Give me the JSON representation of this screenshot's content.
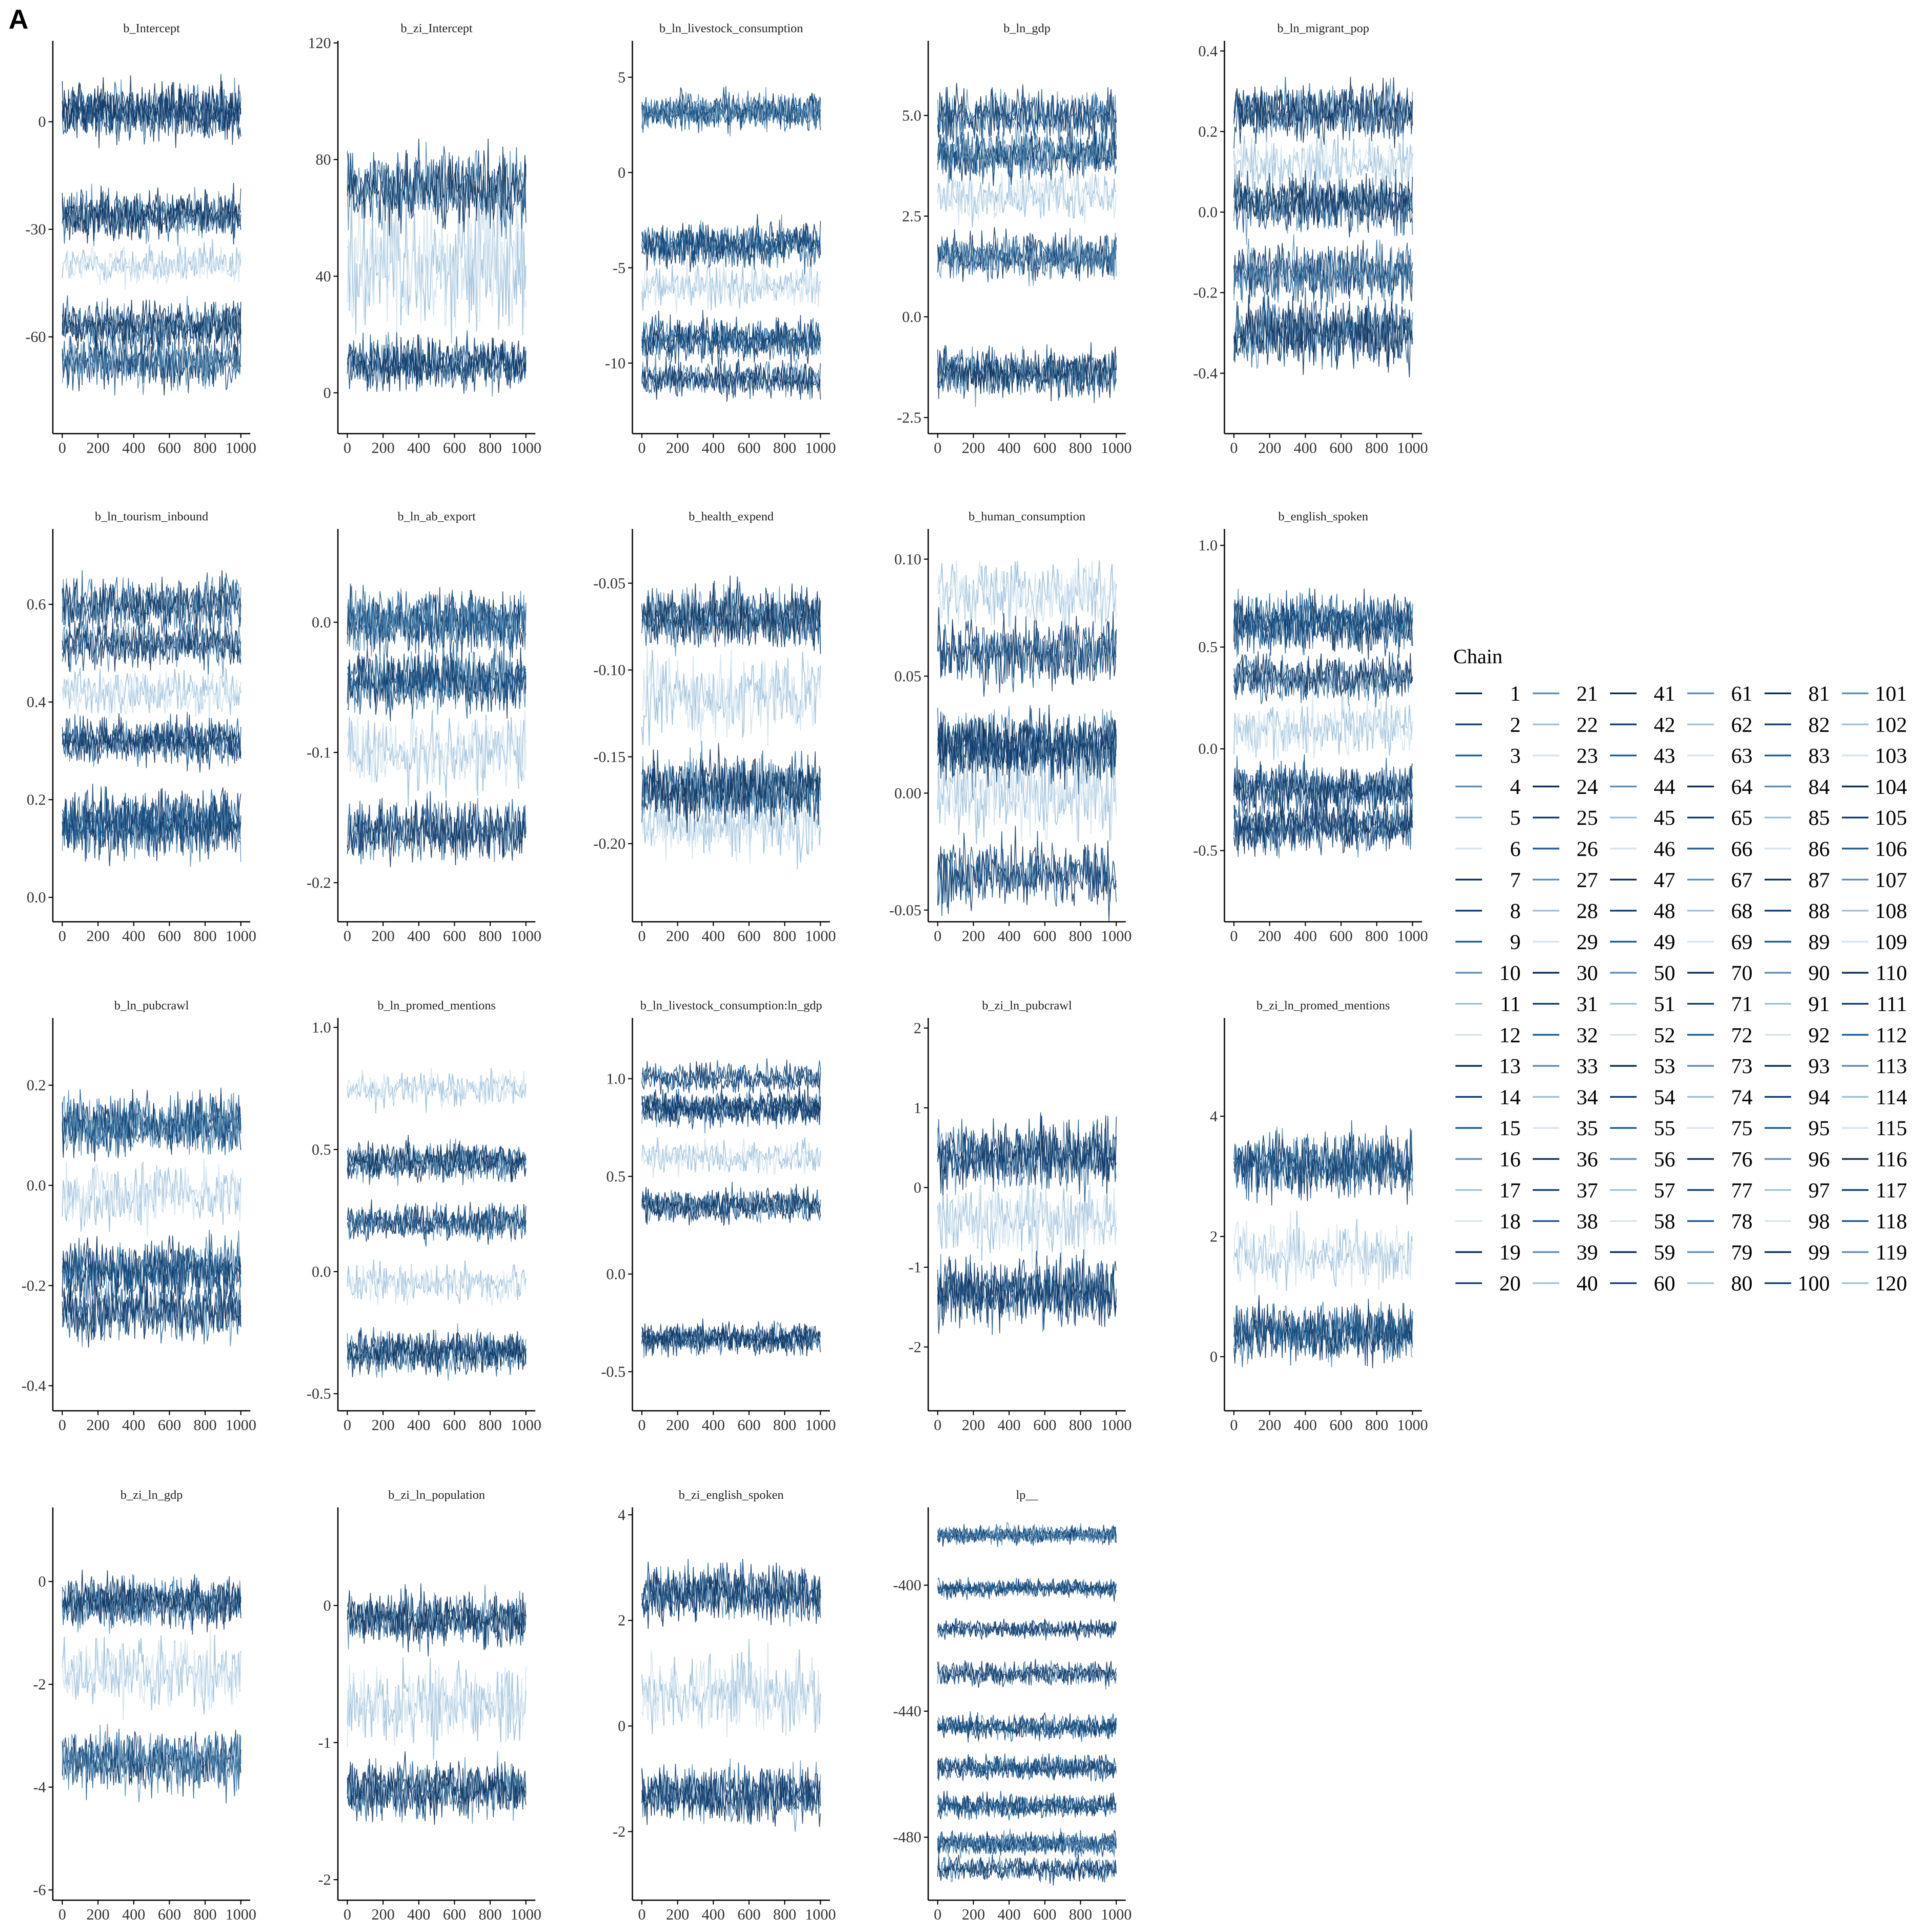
{
  "panel_label": "A",
  "chart_data": {
    "type": "line",
    "description": "MCMC trace plots faceted by parameter; 120 chains, 1000 iterations each",
    "x": {
      "range": [
        0,
        1000
      ],
      "ticks": [
        0,
        200,
        400,
        600,
        800,
        1000
      ]
    },
    "legend": {
      "title": "Chain",
      "placement": "right",
      "chains": [
        1,
        2,
        3,
        4,
        5,
        6,
        7,
        8,
        9,
        10,
        11,
        12,
        13,
        14,
        15,
        16,
        17,
        18,
        19,
        20,
        21,
        22,
        23,
        24,
        25,
        26,
        27,
        28,
        29,
        30,
        31,
        32,
        33,
        34,
        35,
        36,
        37,
        38,
        39,
        40,
        41,
        42,
        43,
        44,
        45,
        46,
        47,
        48,
        49,
        50,
        51,
        52,
        53,
        54,
        55,
        56,
        57,
        58,
        59,
        60,
        61,
        62,
        63,
        64,
        65,
        66,
        67,
        68,
        69,
        70,
        71,
        72,
        73,
        74,
        75,
        76,
        77,
        78,
        79,
        80,
        81,
        82,
        83,
        84,
        85,
        86,
        87,
        88,
        89,
        90,
        91,
        92,
        93,
        94,
        95,
        96,
        97,
        98,
        99,
        100,
        101,
        102,
        103,
        104,
        105,
        106,
        107,
        108,
        109,
        110,
        111,
        112,
        113,
        114,
        115,
        116,
        117,
        118,
        119,
        120
      ],
      "palette": [
        "#0b2c55",
        "#0d3b70",
        "#1a5a8f",
        "#5b8db3",
        "#9fc0da",
        "#d5e4f0"
      ]
    },
    "facets": [
      {
        "title": "b_Intercept",
        "ylim": [
          -87,
          22
        ],
        "yticks": [
          0,
          -30,
          -60
        ],
        "ytick_labels": [
          "0",
          "-30",
          "-60"
        ],
        "bands": [
          {
            "center": 3,
            "spread": 8,
            "weight": 1
          },
          {
            "center": -26,
            "spread": 7,
            "weight": 0.8
          },
          {
            "center": -40,
            "spread": 6,
            "weight": 0.2
          },
          {
            "center": -57,
            "spread": 7,
            "weight": 0.9
          },
          {
            "center": -67,
            "spread": 8,
            "weight": 0.7
          }
        ]
      },
      {
        "title": "b_zi_Intercept",
        "ylim": [
          -14,
          120
        ],
        "yticks": [
          0,
          40,
          80,
          120
        ],
        "ytick_labels": [
          "0",
          "40",
          "80",
          "120"
        ],
        "bands": [
          {
            "center": 10,
            "spread": 9,
            "weight": 0.9
          },
          {
            "center": 45,
            "spread": 28,
            "weight": 0.4
          },
          {
            "center": 70,
            "spread": 14,
            "weight": 0.6
          }
        ]
      },
      {
        "title": "b_ln_livestock_consumption",
        "ylim": [
          -13.7,
          6.8
        ],
        "yticks": [
          5,
          0,
          -5,
          -10
        ],
        "ytick_labels": [
          "5",
          "0",
          "-5",
          "-10"
        ],
        "bands": [
          {
            "center": 3.2,
            "spread": 1,
            "weight": 1
          },
          {
            "center": -3.8,
            "spread": 1.2,
            "weight": 0.9
          },
          {
            "center": -6,
            "spread": 1.2,
            "weight": 0.3
          },
          {
            "center": -8.8,
            "spread": 1.2,
            "weight": 0.9
          },
          {
            "center": -10.8,
            "spread": 1,
            "weight": 0.6
          }
        ]
      },
      {
        "title": "b_ln_gdp",
        "ylim": [
          -2.9,
          6.8
        ],
        "yticks": [
          5.0,
          2.5,
          0.0,
          -2.5
        ],
        "ytick_labels": [
          "5.0",
          "2.5",
          "0.0",
          "-2.5"
        ],
        "bands": [
          {
            "center": 5.0,
            "spread": 0.7,
            "weight": 0.7
          },
          {
            "center": 4.0,
            "spread": 0.6,
            "weight": 0.9
          },
          {
            "center": 3.0,
            "spread": 0.6,
            "weight": 0.3
          },
          {
            "center": 1.5,
            "spread": 0.6,
            "weight": 0.9
          },
          {
            "center": -1.4,
            "spread": 0.6,
            "weight": 1
          }
        ]
      },
      {
        "title": "b_ln_migrant_pop",
        "ylim": [
          -0.55,
          0.42
        ],
        "yticks": [
          0.4,
          0.2,
          0.0,
          -0.2,
          -0.4
        ],
        "ytick_labels": [
          "0.4",
          "0.2",
          "0.0",
          "-0.2",
          "-0.4"
        ],
        "bands": [
          {
            "center": 0.25,
            "spread": 0.07,
            "weight": 0.8
          },
          {
            "center": 0.12,
            "spread": 0.07,
            "weight": 0.3
          },
          {
            "center": 0.02,
            "spread": 0.07,
            "weight": 0.8
          },
          {
            "center": -0.15,
            "spread": 0.08,
            "weight": 0.7
          },
          {
            "center": -0.3,
            "spread": 0.09,
            "weight": 0.8
          }
        ]
      },
      {
        "title": "b_ln_tourism_inbound",
        "ylim": [
          -0.05,
          0.75
        ],
        "yticks": [
          0.6,
          0.4,
          0.2,
          0.0
        ],
        "ytick_labels": [
          "0.6",
          "0.4",
          "0.2",
          "0.0"
        ],
        "bands": [
          {
            "center": 0.6,
            "spread": 0.06,
            "weight": 0.7
          },
          {
            "center": 0.52,
            "spread": 0.05,
            "weight": 0.7
          },
          {
            "center": 0.42,
            "spread": 0.05,
            "weight": 0.3
          },
          {
            "center": 0.32,
            "spread": 0.05,
            "weight": 0.8
          },
          {
            "center": 0.15,
            "spread": 0.07,
            "weight": 1
          }
        ]
      },
      {
        "title": "b_ln_ab_export",
        "ylim": [
          -0.23,
          0.07
        ],
        "yticks": [
          0.0,
          -0.1,
          -0.2
        ],
        "ytick_labels": [
          "0.0",
          "-0.1",
          "-0.2"
        ],
        "bands": [
          {
            "center": 0.0,
            "spread": 0.025,
            "weight": 1
          },
          {
            "center": -0.045,
            "spread": 0.025,
            "weight": 0.8
          },
          {
            "center": -0.1,
            "spread": 0.03,
            "weight": 0.3
          },
          {
            "center": -0.16,
            "spread": 0.025,
            "weight": 0.7
          }
        ]
      },
      {
        "title": "b_health_expend",
        "ylim": [
          -0.245,
          -0.02
        ],
        "yticks": [
          -0.05,
          -0.1,
          -0.15,
          -0.2
        ],
        "ytick_labels": [
          "-0.05",
          "-0.10",
          "-0.15",
          "-0.20"
        ],
        "bands": [
          {
            "center": -0.07,
            "spread": 0.018,
            "weight": 1
          },
          {
            "center": -0.115,
            "spread": 0.025,
            "weight": 0.3
          },
          {
            "center": -0.168,
            "spread": 0.02,
            "weight": 1
          },
          {
            "center": -0.19,
            "spread": 0.02,
            "weight": 0.4
          }
        ]
      },
      {
        "title": "b_human_consumption",
        "ylim": [
          -0.055,
          0.112
        ],
        "yticks": [
          0.1,
          0.05,
          0.0,
          -0.05
        ],
        "ytick_labels": [
          "0.10",
          "0.05",
          "0.00",
          "-0.05"
        ],
        "bands": [
          {
            "center": 0.085,
            "spread": 0.015,
            "weight": 0.3
          },
          {
            "center": 0.06,
            "spread": 0.015,
            "weight": 0.5
          },
          {
            "center": 0.02,
            "spread": 0.015,
            "weight": 1
          },
          {
            "center": 0.0,
            "spread": 0.02,
            "weight": 0.4
          },
          {
            "center": -0.035,
            "spread": 0.015,
            "weight": 0.5
          }
        ]
      },
      {
        "title": "b_english_spoken",
        "ylim": [
          -0.85,
          1.07
        ],
        "yticks": [
          1.0,
          0.5,
          0.0,
          -0.5
        ],
        "ytick_labels": [
          "1.0",
          "0.5",
          "0.0",
          "-0.5"
        ],
        "bands": [
          {
            "center": 0.62,
            "spread": 0.14,
            "weight": 1
          },
          {
            "center": 0.35,
            "spread": 0.12,
            "weight": 0.7
          },
          {
            "center": 0.1,
            "spread": 0.15,
            "weight": 0.3
          },
          {
            "center": -0.2,
            "spread": 0.13,
            "weight": 0.9
          },
          {
            "center": -0.38,
            "spread": 0.13,
            "weight": 0.8
          }
        ]
      },
      {
        "title": "b_ln_pubcrawl",
        "ylim": [
          -0.45,
          0.33
        ],
        "yticks": [
          0.2,
          0.0,
          -0.2,
          -0.4
        ],
        "ytick_labels": [
          "0.2",
          "0.0",
          "-0.2",
          "-0.4"
        ],
        "bands": [
          {
            "center": 0.12,
            "spread": 0.06,
            "weight": 1
          },
          {
            "center": -0.02,
            "spread": 0.07,
            "weight": 0.3
          },
          {
            "center": -0.17,
            "spread": 0.06,
            "weight": 0.9
          },
          {
            "center": -0.25,
            "spread": 0.06,
            "weight": 0.7
          }
        ]
      },
      {
        "title": "b_ln_promed_mentions",
        "ylim": [
          -0.57,
          1.03
        ],
        "yticks": [
          1.0,
          0.5,
          0.0,
          -0.5
        ],
        "ytick_labels": [
          "1.0",
          "0.5",
          "0.0",
          "-0.5"
        ],
        "bands": [
          {
            "center": 0.75,
            "spread": 0.08,
            "weight": 0.3
          },
          {
            "center": 0.45,
            "spread": 0.08,
            "weight": 1
          },
          {
            "center": 0.2,
            "spread": 0.08,
            "weight": 0.6
          },
          {
            "center": -0.05,
            "spread": 0.08,
            "weight": 0.3
          },
          {
            "center": -0.33,
            "spread": 0.09,
            "weight": 1
          }
        ]
      },
      {
        "title": "b_ln_livestock_consumption:ln_gdp",
        "ylim": [
          -0.7,
          1.3
        ],
        "yticks": [
          1.0,
          0.5,
          0.0,
          -0.5
        ],
        "ytick_labels": [
          "1.0",
          "0.5",
          "0.0",
          "-0.5"
        ],
        "bands": [
          {
            "center": 1.0,
            "spread": 0.08,
            "weight": 0.5
          },
          {
            "center": 0.85,
            "spread": 0.09,
            "weight": 1
          },
          {
            "center": 0.6,
            "spread": 0.09,
            "weight": 0.3
          },
          {
            "center": 0.35,
            "spread": 0.09,
            "weight": 0.9
          },
          {
            "center": -0.33,
            "spread": 0.08,
            "weight": 1
          }
        ]
      },
      {
        "title": "b_zi_ln_pubcrawl",
        "ylim": [
          -2.8,
          2.1
        ],
        "yticks": [
          2,
          1,
          0,
          -1,
          -2
        ],
        "ytick_labels": [
          "2",
          "1",
          "0",
          "-1",
          "-2"
        ],
        "bands": [
          {
            "center": 0.4,
            "spread": 0.45,
            "weight": 0.8
          },
          {
            "center": -0.4,
            "spread": 0.5,
            "weight": 0.4
          },
          {
            "center": -1.3,
            "spread": 0.45,
            "weight": 0.9
          }
        ]
      },
      {
        "title": "b_zi_ln_promed_mentions",
        "ylim": [
          -0.9,
          5.6
        ],
        "yticks": [
          4,
          2,
          0
        ],
        "ytick_labels": [
          "4",
          "2",
          "0"
        ],
        "bands": [
          {
            "center": 3.2,
            "spread": 0.55,
            "weight": 0.8
          },
          {
            "center": 1.7,
            "spread": 0.6,
            "weight": 0.4
          },
          {
            "center": 0.4,
            "spread": 0.5,
            "weight": 0.9
          }
        ]
      },
      {
        "title": "b_zi_ln_gdp",
        "ylim": [
          -6.2,
          1.4
        ],
        "yticks": [
          0,
          -2,
          -4,
          -6
        ],
        "ytick_labels": [
          "0",
          "-2",
          "-4",
          "-6"
        ],
        "bands": [
          {
            "center": -0.4,
            "spread": 0.5,
            "weight": 1
          },
          {
            "center": -1.8,
            "spread": 0.7,
            "weight": 0.4
          },
          {
            "center": -3.5,
            "spread": 0.6,
            "weight": 0.9
          }
        ]
      },
      {
        "title": "b_zi_ln_population",
        "ylim": [
          -2.15,
          0.7
        ],
        "yticks": [
          0,
          -1,
          -2
        ],
        "ytick_labels": [
          "0",
          "-1",
          "-2"
        ],
        "bands": [
          {
            "center": -0.1,
            "spread": 0.2,
            "weight": 0.9
          },
          {
            "center": -0.7,
            "spread": 0.3,
            "weight": 0.4
          },
          {
            "center": -1.35,
            "spread": 0.22,
            "weight": 0.9
          }
        ]
      },
      {
        "title": "b_zi_english_spoken",
        "ylim": [
          -3.3,
          4.1
        ],
        "yticks": [
          4,
          2,
          0,
          -2
        ],
        "ytick_labels": [
          "4",
          "2",
          "0",
          "-2"
        ],
        "bands": [
          {
            "center": 2.5,
            "spread": 0.55,
            "weight": 0.8
          },
          {
            "center": 0.6,
            "spread": 0.8,
            "weight": 0.4
          },
          {
            "center": -1.3,
            "spread": 0.55,
            "weight": 0.9
          }
        ]
      },
      {
        "title": "lp__",
        "ylim": [
          -500,
          -376
        ],
        "yticks": [
          -400,
          -440,
          -480
        ],
        "ytick_labels": [
          "-400",
          "-440",
          "-480"
        ],
        "bands": [
          {
            "center": -384,
            "spread": 3,
            "weight": 1
          },
          {
            "center": -401,
            "spread": 3,
            "weight": 0.8
          },
          {
            "center": -414,
            "spread": 3,
            "weight": 0.6
          },
          {
            "center": -428,
            "spread": 4,
            "weight": 0.7
          },
          {
            "center": -445,
            "spread": 4,
            "weight": 0.9
          },
          {
            "center": -458,
            "spread": 4,
            "weight": 0.9
          },
          {
            "center": -470,
            "spread": 4,
            "weight": 0.8
          },
          {
            "center": -482,
            "spread": 4,
            "weight": 1
          },
          {
            "center": -490,
            "spread": 4,
            "weight": 0.7
          }
        ]
      }
    ]
  }
}
